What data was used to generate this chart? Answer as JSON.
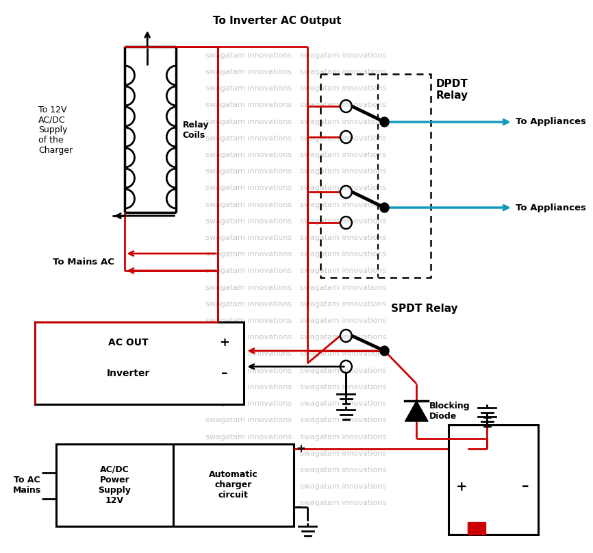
{
  "bg_color": "#ffffff",
  "watermark_text": "swagatam innovations",
  "watermark_color": "#c8c8c8",
  "lc_black": "#000000",
  "lc_red": "#cc0000",
  "lc_blue": "#1199bb",
  "lw_main": 2.0,
  "lw_relay_arm": 3.5,
  "watermark_rows": [
    [
      0.37,
      0.54,
      0.91
    ],
    [
      0.37,
      0.54,
      0.88
    ],
    [
      0.37,
      0.54,
      0.85
    ],
    [
      0.37,
      0.54,
      0.82
    ],
    [
      0.37,
      0.54,
      0.79
    ],
    [
      0.37,
      0.54,
      0.76
    ],
    [
      0.37,
      0.54,
      0.73
    ],
    [
      0.37,
      0.54,
      0.7
    ],
    [
      0.37,
      0.54,
      0.67
    ],
    [
      0.37,
      0.54,
      0.64
    ],
    [
      0.37,
      0.54,
      0.61
    ],
    [
      0.37,
      0.54,
      0.58
    ],
    [
      0.37,
      0.54,
      0.55
    ],
    [
      0.37,
      0.54,
      0.52
    ],
    [
      0.37,
      0.54,
      0.49
    ],
    [
      0.37,
      0.54,
      0.46
    ],
    [
      0.37,
      0.54,
      0.43
    ],
    [
      0.37,
      0.54,
      0.4
    ],
    [
      0.37,
      0.54,
      0.37
    ],
    [
      0.37,
      0.54,
      0.34
    ],
    [
      0.37,
      0.54,
      0.31
    ],
    [
      0.37,
      0.54,
      0.28
    ],
    [
      0.37,
      0.54,
      0.25
    ],
    [
      0.37,
      0.54,
      0.22
    ],
    [
      0.37,
      0.54,
      0.19
    ],
    [
      0.37,
      0.54,
      0.16
    ],
    [
      0.37,
      0.54,
      0.13
    ],
    [
      0.37,
      0.54,
      0.1
    ]
  ],
  "labels": {
    "to_inverter_ac_output": "To Inverter AC Output",
    "relay_coils": "Relay\nCoils",
    "to_12v": "To 12V\nAC/DC\nSupply\nof the\nCharger",
    "dpdt_relay": "DPDT\nRelay",
    "to_appliances": "To Appliances",
    "to_mains_ac": "To Mains AC",
    "spdt_relay": "SPDT Relay",
    "ac_out": "AC OUT",
    "inverter": "Inverter",
    "blocking_diode": "Blocking\nDiode",
    "ac_dc_power": "AC/DC\nPower\nSupply\n12V",
    "auto_charger": "Automatic\ncharger\ncircuit",
    "to_ac_mains": "To AC\nMains"
  }
}
